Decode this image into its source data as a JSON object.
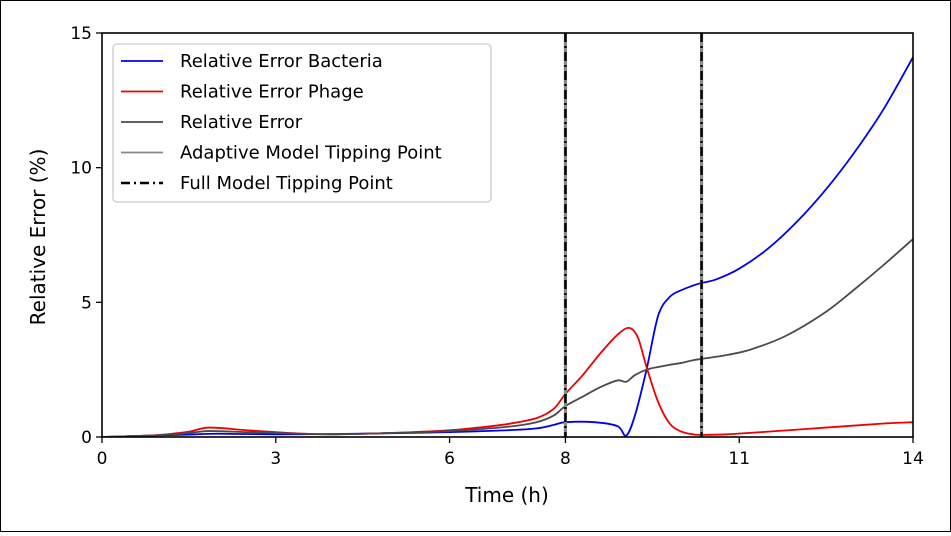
{
  "chart_data": {
    "type": "line",
    "xlabel": "Time (h)",
    "ylabel": "Relative Error (%)",
    "xlim": [
      0,
      14
    ],
    "ylim": [
      0,
      15
    ],
    "xticks": [
      0,
      3,
      6,
      8,
      11,
      14
    ],
    "yticks": [
      0,
      5,
      10,
      15
    ],
    "xtick_labels": [
      "0",
      "3",
      "6",
      "8",
      "11",
      "14"
    ],
    "ytick_labels": [
      "0",
      "5",
      "10",
      "15"
    ],
    "grid": false,
    "legend": {
      "placement": "top-left"
    },
    "series": [
      {
        "name": "Relative Error Bacteria",
        "color": "#0000ee",
        "x": [
          0,
          0.5,
          1,
          1.5,
          2,
          3,
          4,
          5,
          6,
          7,
          7.5,
          7.8,
          8,
          8.5,
          8.9,
          9.05,
          9.2,
          9.4,
          9.6,
          9.8,
          10,
          10.2,
          10.35,
          10.6,
          11,
          11.5,
          12,
          12.5,
          13,
          13.5,
          14
        ],
        "y": [
          0,
          0.03,
          0.06,
          0.09,
          0.12,
          0.1,
          0.11,
          0.14,
          0.18,
          0.25,
          0.32,
          0.45,
          0.55,
          0.55,
          0.4,
          0.05,
          0.8,
          2.5,
          4.5,
          5.2,
          5.45,
          5.62,
          5.72,
          5.85,
          6.25,
          7.0,
          8.0,
          9.2,
          10.6,
          12.2,
          14.1
        ]
      },
      {
        "name": "Relative Error Phage",
        "color": "#ee0000",
        "x": [
          0,
          0.5,
          1,
          1.5,
          1.85,
          2.5,
          3,
          3.5,
          4,
          5,
          6,
          6.5,
          7,
          7.5,
          7.8,
          8,
          8.3,
          8.6,
          8.9,
          9.1,
          9.25,
          9.4,
          9.6,
          9.8,
          10,
          10.2,
          10.35,
          10.8,
          11.5,
          12.5,
          13.5,
          14
        ],
        "y": [
          0,
          0.03,
          0.08,
          0.2,
          0.35,
          0.25,
          0.18,
          0.12,
          0.1,
          0.15,
          0.25,
          0.35,
          0.48,
          0.7,
          1.05,
          1.6,
          2.3,
          3.1,
          3.8,
          4.05,
          3.7,
          2.6,
          1.3,
          0.5,
          0.2,
          0.1,
          0.08,
          0.1,
          0.2,
          0.35,
          0.5,
          0.55
        ]
      },
      {
        "name": "Relative Error",
        "color": "#4a4a4a",
        "x": [
          0,
          0.5,
          1,
          1.5,
          1.85,
          2.5,
          3,
          4,
          5,
          6,
          7,
          7.5,
          7.8,
          8,
          8.3,
          8.6,
          8.9,
          9.05,
          9.2,
          9.4,
          9.6,
          9.8,
          10,
          10.2,
          10.35,
          10.8,
          11.2,
          11.8,
          12.5,
          13,
          13.5,
          14
        ],
        "y": [
          0,
          0.03,
          0.07,
          0.15,
          0.22,
          0.18,
          0.15,
          0.1,
          0.15,
          0.22,
          0.38,
          0.55,
          0.8,
          1.15,
          1.5,
          1.85,
          2.1,
          2.05,
          2.3,
          2.5,
          2.6,
          2.68,
          2.75,
          2.85,
          2.9,
          3.05,
          3.25,
          3.75,
          4.65,
          5.5,
          6.4,
          7.35
        ]
      },
      {
        "name": "Adaptive Model Tipping Point",
        "color": "#888888",
        "vlines": [
          8.0,
          10.35
        ]
      },
      {
        "name": "Full Model Tipping Point",
        "color": "#000000",
        "vlines": [
          8.0,
          10.35
        ]
      }
    ]
  }
}
